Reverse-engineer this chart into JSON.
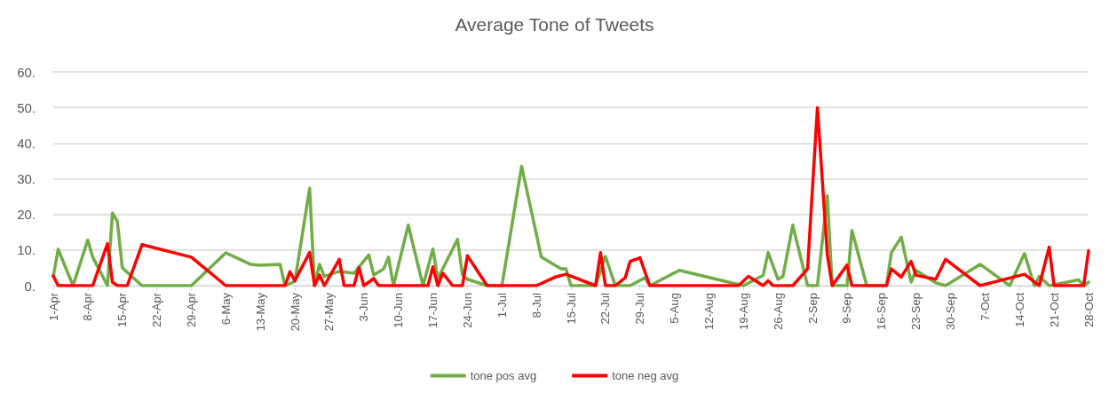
{
  "chart_data": {
    "type": "line",
    "title": "Average Tone of Tweets",
    "xlim": [
      "--04-01",
      "--10-28"
    ],
    "xticks": [
      {
        "value": "--04-01",
        "label": "1-Apr"
      },
      {
        "value": "--04-08",
        "label": "8-Apr"
      },
      {
        "value": "--04-15",
        "label": "15-Apr"
      },
      {
        "value": "--04-22",
        "label": "22-Apr"
      },
      {
        "value": "--04-29",
        "label": "29-Apr"
      },
      {
        "value": "--05-06",
        "label": "6-May"
      },
      {
        "value": "--05-13",
        "label": "13-May"
      },
      {
        "value": "--05-20",
        "label": "20-May"
      },
      {
        "value": "--05-27",
        "label": "27-May"
      },
      {
        "value": "--06-03",
        "label": "3-Jun"
      },
      {
        "value": "--06-10",
        "label": "10-Jun"
      },
      {
        "value": "--06-17",
        "label": "17-Jun"
      },
      {
        "value": "--06-24",
        "label": "24-Jun"
      },
      {
        "value": "--07-01",
        "label": "1-Jul"
      },
      {
        "value": "--07-08",
        "label": "8-Jul"
      },
      {
        "value": "--07-15",
        "label": "15-Jul"
      },
      {
        "value": "--07-22",
        "label": "22-Jul"
      },
      {
        "value": "--07-29",
        "label": "29-Jul"
      },
      {
        "value": "--08-05",
        "label": "5-Aug"
      },
      {
        "value": "--08-12",
        "label": "12-Aug"
      },
      {
        "value": "--08-19",
        "label": "19-Aug"
      },
      {
        "value": "--08-26",
        "label": "26-Aug"
      },
      {
        "value": "--09-02",
        "label": "2-Sep"
      },
      {
        "value": "--09-09",
        "label": "9-Sep"
      },
      {
        "value": "--09-16",
        "label": "16-Sep"
      },
      {
        "value": "--09-23",
        "label": "23-Sep"
      },
      {
        "value": "--09-30",
        "label": "30-Sep"
      },
      {
        "value": "--10-07",
        "label": "7-Oct"
      },
      {
        "value": "--10-14",
        "label": "14-Oct"
      },
      {
        "value": "--10-21",
        "label": "21-Oct"
      },
      {
        "value": "--10-28",
        "label": "28-Oct"
      }
    ],
    "ylim": [
      0,
      60
    ],
    "yticks": [
      {
        "value": 0,
        "label": "0."
      },
      {
        "value": 10,
        "label": "10."
      },
      {
        "value": 20,
        "label": "20."
      },
      {
        "value": 30,
        "label": "30."
      },
      {
        "value": 40,
        "label": "40."
      },
      {
        "value": 50,
        "label": "50."
      },
      {
        "value": 60,
        "label": "60."
      }
    ],
    "grid": "y",
    "legend": "bottom",
    "marker": "none",
    "line_style": "solid",
    "series": [
      {
        "name": "tone pos avg",
        "color": "#70ad47",
        "x": [
          "--04-01",
          "--04-02",
          "--04-05",
          "--04-08",
          "--04-09",
          "--04-12",
          "--04-13",
          "--04-14",
          "--04-15",
          "--04-19",
          "--04-29",
          "--05-06",
          "--05-11",
          "--05-13",
          "--05-17",
          "--05-18",
          "--05-20",
          "--05-23",
          "--05-24",
          "--05-25",
          "--05-26",
          "--05-29",
          "--06-01",
          "--06-04",
          "--06-05",
          "--06-07",
          "--06-08",
          "--06-09",
          "--06-12",
          "--06-15",
          "--06-17",
          "--06-18",
          "--06-22",
          "--06-23",
          "--06-24",
          "--06-28",
          "--07-01",
          "--07-05",
          "--07-09",
          "--07-13",
          "--07-14",
          "--07-15",
          "--07-20",
          "--07-22",
          "--07-24",
          "--07-27",
          "--07-30",
          "--07-31",
          "--08-06",
          "--08-19",
          "--08-23",
          "--08-24",
          "--08-26",
          "--08-27",
          "--08-29",
          "--09-01",
          "--09-03",
          "--09-05",
          "--09-06",
          "--09-09",
          "--09-10",
          "--09-13",
          "--09-17",
          "--09-18",
          "--09-20",
          "--09-22",
          "--09-23",
          "--09-27",
          "--09-29",
          "--10-06",
          "--10-12",
          "--10-15",
          "--10-17",
          "--10-18",
          "--10-20",
          "--10-26",
          "--10-27",
          "--10-28"
        ],
        "values": [
          2.6,
          10.2,
          0,
          12.8,
          8,
          0,
          20.4,
          18,
          5,
          0,
          0,
          9.2,
          6,
          5.7,
          6,
          0,
          1.2,
          27.3,
          0,
          6,
          2.6,
          4,
          3.5,
          8.6,
          3,
          4.7,
          8,
          0,
          17,
          0,
          10.3,
          2,
          13,
          3,
          1.8,
          0,
          0,
          33.5,
          8,
          4.7,
          4.7,
          0,
          0,
          8.2,
          0,
          0,
          2.2,
          0,
          4.3,
          0,
          2.9,
          9.3,
          1.8,
          2.6,
          17,
          0,
          0,
          25.2,
          0,
          0,
          15.5,
          0,
          0,
          9.3,
          13.6,
          1,
          4.3,
          0.8,
          0,
          6,
          0,
          9,
          0,
          2.6,
          0,
          1.6,
          0,
          1
        ]
      },
      {
        "name": "tone neg avg",
        "color": "#ff0000",
        "x": [
          "--04-01",
          "--04-02",
          "--04-09",
          "--04-12",
          "--04-13",
          "--04-14",
          "--04-16",
          "--04-19",
          "--04-29",
          "--05-06",
          "--05-18",
          "--05-19",
          "--05-20",
          "--05-23",
          "--05-24",
          "--05-25",
          "--05-26",
          "--05-29",
          "--05-30",
          "--06-01",
          "--06-02",
          "--06-03",
          "--06-05",
          "--06-06",
          "--06-16",
          "--06-17",
          "--06-18",
          "--06-19",
          "--06-21",
          "--06-23",
          "--06-24",
          "--06-28",
          "--07-08",
          "--07-12",
          "--07-14",
          "--07-20",
          "--07-21",
          "--07-22",
          "--07-24",
          "--07-26",
          "--07-27",
          "--07-29",
          "--07-31",
          "--08-18",
          "--08-20",
          "--08-23",
          "--08-24",
          "--08-25",
          "--08-29",
          "--09-01",
          "--09-03",
          "--09-05",
          "--09-06",
          "--09-09",
          "--09-10",
          "--09-17",
          "--09-18",
          "--09-20",
          "--09-22",
          "--09-23",
          "--09-27",
          "--09-29",
          "--10-06",
          "--10-15",
          "--10-18",
          "--10-20",
          "--10-21",
          "--10-27",
          "--10-28"
        ],
        "values": [
          2.7,
          0,
          0,
          11.8,
          1,
          0,
          0,
          11.5,
          8,
          0,
          0,
          3.9,
          1.4,
          9.3,
          0,
          3,
          0,
          7.4,
          0,
          0,
          5.1,
          0,
          2,
          0,
          0,
          5.3,
          0,
          3.5,
          0,
          0,
          8.4,
          0,
          0,
          2.5,
          3.2,
          0,
          9.3,
          0,
          0,
          2.2,
          6.8,
          7.8,
          0,
          0,
          2.6,
          0,
          1.4,
          0,
          0,
          4.7,
          50,
          8.8,
          0,
          5.8,
          0,
          0,
          4.7,
          2.4,
          6.8,
          2.9,
          1.8,
          7.4,
          0,
          3.2,
          0,
          10.8,
          0,
          0,
          9.8
        ]
      }
    ]
  }
}
